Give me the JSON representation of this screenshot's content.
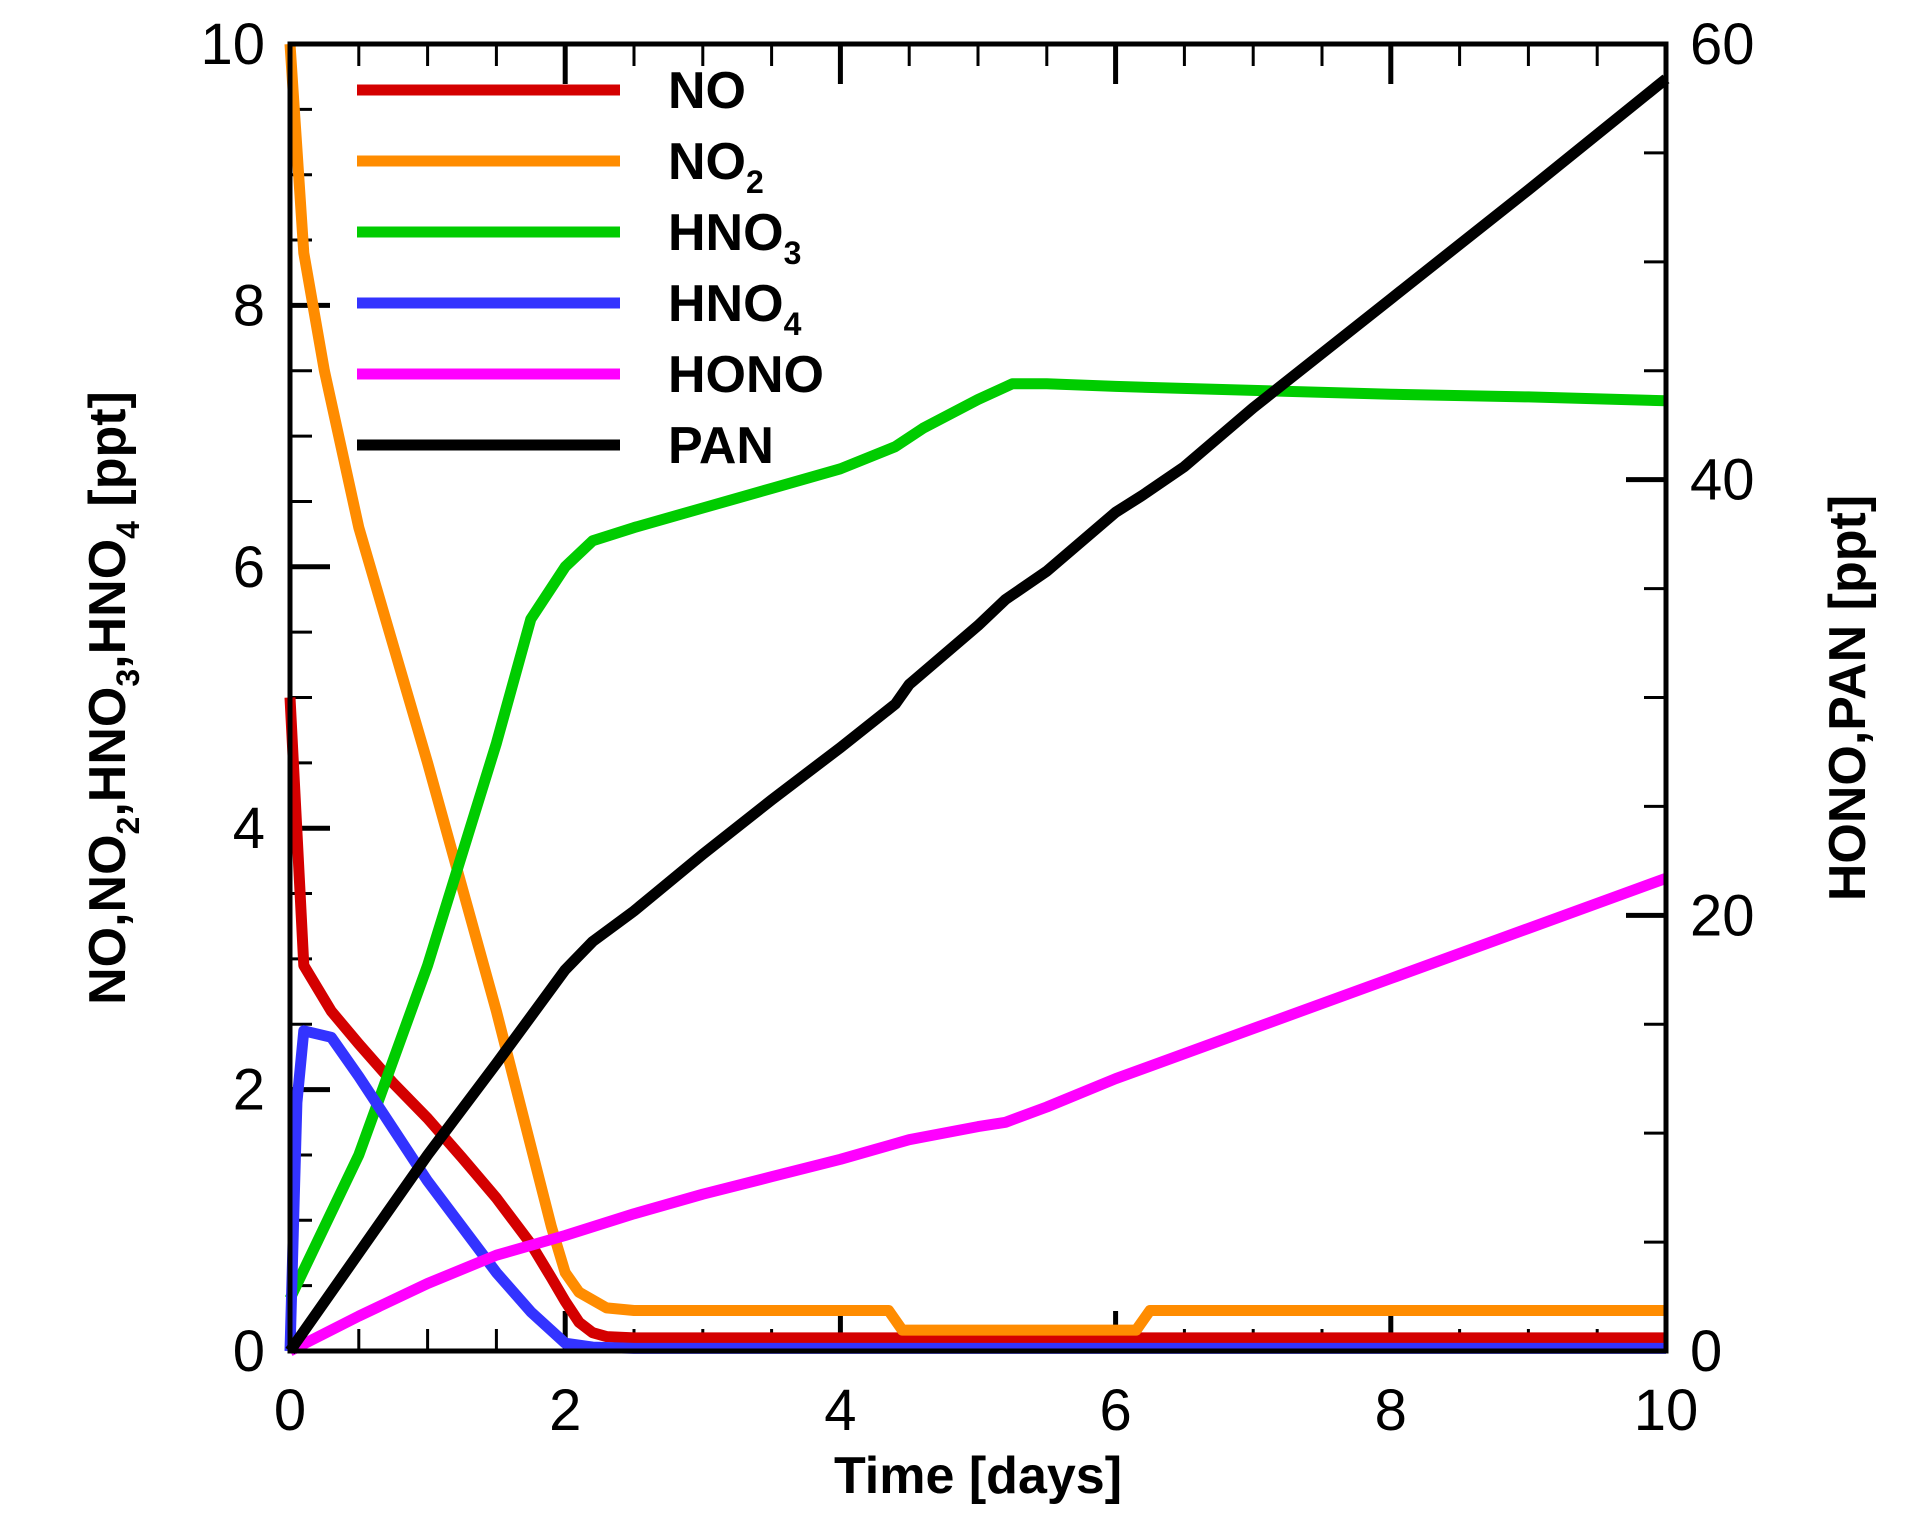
{
  "chart_data": {
    "type": "line",
    "title": "",
    "xlabel": "Time [days]",
    "ylabel_left": {
      "parts": [
        {
          "t": "NO,NO"
        },
        {
          "t": "2",
          "sub": true
        },
        {
          "t": ",HNO"
        },
        {
          "t": "3",
          "sub": true
        },
        {
          "t": ",HNO"
        },
        {
          "t": "4",
          "sub": true
        },
        {
          "t": " [ppt]"
        }
      ]
    },
    "ylabel_right": "HONO,PAN [ppt]",
    "xlim": [
      0,
      10
    ],
    "ylim_left": [
      0,
      10
    ],
    "ylim_right": [
      0,
      60
    ],
    "x_ticks": [
      "0",
      "2",
      "4",
      "6",
      "8",
      "10"
    ],
    "y_left_ticks": [
      "0",
      "2",
      "4",
      "6",
      "8",
      "10"
    ],
    "y_right_ticks": [
      "0",
      "20",
      "40",
      "60"
    ],
    "series": [
      {
        "name": "NO",
        "label_parts": [
          {
            "t": "NO"
          }
        ],
        "axis": "left",
        "color": "#d40000",
        "points": [
          [
            0,
            5.0
          ],
          [
            0.1,
            2.95
          ],
          [
            0.3,
            2.6
          ],
          [
            0.5,
            2.35
          ],
          [
            0.75,
            2.05
          ],
          [
            1.0,
            1.78
          ],
          [
            1.25,
            1.48
          ],
          [
            1.5,
            1.17
          ],
          [
            1.75,
            0.82
          ],
          [
            1.9,
            0.56
          ],
          [
            2.0,
            0.38
          ],
          [
            2.1,
            0.22
          ],
          [
            2.2,
            0.14
          ],
          [
            2.3,
            0.11
          ],
          [
            2.5,
            0.1
          ],
          [
            10,
            0.1
          ]
        ]
      },
      {
        "name": "NO2",
        "label_parts": [
          {
            "t": "NO"
          },
          {
            "t": "2",
            "sub": true
          }
        ],
        "axis": "left",
        "color": "#ff8c00",
        "points": [
          [
            0,
            10.0
          ],
          [
            0.1,
            8.4
          ],
          [
            0.25,
            7.5
          ],
          [
            0.5,
            6.3
          ],
          [
            1.0,
            4.5
          ],
          [
            1.5,
            2.6
          ],
          [
            1.9,
            0.95
          ],
          [
            2.0,
            0.6
          ],
          [
            2.1,
            0.45
          ],
          [
            2.3,
            0.33
          ],
          [
            2.5,
            0.31
          ],
          [
            4.35,
            0.31
          ],
          [
            4.45,
            0.16
          ],
          [
            6.15,
            0.16
          ],
          [
            6.25,
            0.31
          ],
          [
            10,
            0.31
          ]
        ]
      },
      {
        "name": "HNO3",
        "label_parts": [
          {
            "t": "HNO"
          },
          {
            "t": "3",
            "sub": true
          }
        ],
        "axis": "left",
        "color": "#00cc00",
        "points": [
          [
            0,
            0.4
          ],
          [
            0.5,
            1.5
          ],
          [
            1.0,
            2.95
          ],
          [
            1.5,
            4.65
          ],
          [
            1.75,
            5.6
          ],
          [
            2.0,
            6.0
          ],
          [
            2.2,
            6.2
          ],
          [
            2.5,
            6.3
          ],
          [
            3.0,
            6.45
          ],
          [
            3.5,
            6.6
          ],
          [
            4.0,
            6.75
          ],
          [
            4.4,
            6.92
          ],
          [
            4.6,
            7.06
          ],
          [
            5.0,
            7.28
          ],
          [
            5.25,
            7.4
          ],
          [
            5.5,
            7.4
          ],
          [
            6.0,
            7.38
          ],
          [
            7.0,
            7.35
          ],
          [
            8.0,
            7.32
          ],
          [
            9.0,
            7.3
          ],
          [
            10.0,
            7.27
          ]
        ]
      },
      {
        "name": "HNO4",
        "label_parts": [
          {
            "t": "HNO"
          },
          {
            "t": "4",
            "sub": true
          }
        ],
        "axis": "left",
        "color": "#3333ff",
        "points": [
          [
            0,
            0.0
          ],
          [
            0.05,
            1.9
          ],
          [
            0.1,
            2.45
          ],
          [
            0.3,
            2.4
          ],
          [
            0.5,
            2.1
          ],
          [
            0.75,
            1.7
          ],
          [
            1.0,
            1.3
          ],
          [
            1.25,
            0.95
          ],
          [
            1.5,
            0.6
          ],
          [
            1.75,
            0.3
          ],
          [
            2.0,
            0.06
          ],
          [
            2.2,
            0.03
          ],
          [
            2.5,
            0.02
          ],
          [
            10,
            0.02
          ]
        ]
      },
      {
        "name": "HONO",
        "label_parts": [
          {
            "t": "HONO"
          }
        ],
        "axis": "right",
        "color": "#ff00ff",
        "points": [
          [
            0,
            0.0
          ],
          [
            0.5,
            1.6
          ],
          [
            1.0,
            3.1
          ],
          [
            1.5,
            4.4
          ],
          [
            2.0,
            5.3
          ],
          [
            2.5,
            6.3
          ],
          [
            3.0,
            7.2
          ],
          [
            3.5,
            8.0
          ],
          [
            4.0,
            8.8
          ],
          [
            4.5,
            9.7
          ],
          [
            5.0,
            10.3
          ],
          [
            5.2,
            10.5
          ],
          [
            5.5,
            11.2
          ],
          [
            6.0,
            12.5
          ],
          [
            7.0,
            14.8
          ],
          [
            8.0,
            17.1
          ],
          [
            9.0,
            19.4
          ],
          [
            10.0,
            21.7
          ]
        ]
      },
      {
        "name": "PAN",
        "label_parts": [
          {
            "t": "PAN"
          }
        ],
        "axis": "right",
        "color": "#000000",
        "points": [
          [
            0,
            0.0
          ],
          [
            0.5,
            4.5
          ],
          [
            1.0,
            9.0
          ],
          [
            1.5,
            13.2
          ],
          [
            2.0,
            17.5
          ],
          [
            2.2,
            18.8
          ],
          [
            2.5,
            20.2
          ],
          [
            3.0,
            22.8
          ],
          [
            3.5,
            25.3
          ],
          [
            4.0,
            27.7
          ],
          [
            4.4,
            29.7
          ],
          [
            4.5,
            30.6
          ],
          [
            5.0,
            33.3
          ],
          [
            5.2,
            34.5
          ],
          [
            5.5,
            35.8
          ],
          [
            6.0,
            38.5
          ],
          [
            6.2,
            39.3
          ],
          [
            6.5,
            40.6
          ],
          [
            7.0,
            43.3
          ],
          [
            8.0,
            48.3
          ],
          [
            9.0,
            53.3
          ],
          [
            10.0,
            58.4
          ]
        ]
      }
    ]
  }
}
